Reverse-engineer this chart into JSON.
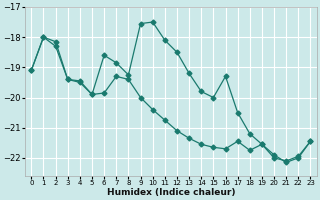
{
  "xlabel": "Humidex (Indice chaleur)",
  "bg_color": "#cce9e9",
  "line_color": "#1a7a6e",
  "grid_color": "#ffffff",
  "ylim": [
    -22.6,
    -17.0
  ],
  "xlim": [
    -0.5,
    23.5
  ],
  "yticks": [
    -22,
    -21,
    -20,
    -19,
    -18,
    -17
  ],
  "xticks": [
    0,
    1,
    2,
    3,
    4,
    5,
    6,
    7,
    8,
    9,
    10,
    11,
    12,
    13,
    14,
    15,
    16,
    17,
    18,
    19,
    20,
    21,
    22,
    23
  ],
  "series1_x": [
    0,
    1,
    2,
    3,
    4,
    5,
    6,
    7,
    8,
    9,
    10,
    11,
    12,
    13,
    14,
    15,
    16,
    17,
    18,
    19,
    20,
    21,
    22,
    23
  ],
  "series1_y": [
    -19.1,
    -18.0,
    -18.15,
    -19.4,
    -19.45,
    -19.9,
    -18.6,
    -18.85,
    -19.25,
    -17.55,
    -17.5,
    -18.1,
    -18.5,
    -19.2,
    -19.8,
    -20.0,
    -19.3,
    -20.5,
    -21.2,
    -21.55,
    -22.0,
    -22.1,
    -21.95,
    -21.45
  ],
  "series2_x": [
    0,
    1,
    2,
    3,
    4,
    5,
    6,
    7,
    8,
    9,
    10,
    11,
    12,
    13,
    14,
    15,
    16,
    17,
    18,
    19,
    20,
    21,
    22,
    23
  ],
  "series2_y": [
    -19.1,
    -18.0,
    -18.3,
    -19.4,
    -19.5,
    -19.9,
    -19.85,
    -19.3,
    -19.4,
    -20.0,
    -20.4,
    -20.75,
    -21.1,
    -21.35,
    -21.55,
    -21.65,
    -21.7,
    -21.45,
    -21.75,
    -21.55,
    -21.9,
    -22.15,
    -22.0,
    -21.45
  ]
}
